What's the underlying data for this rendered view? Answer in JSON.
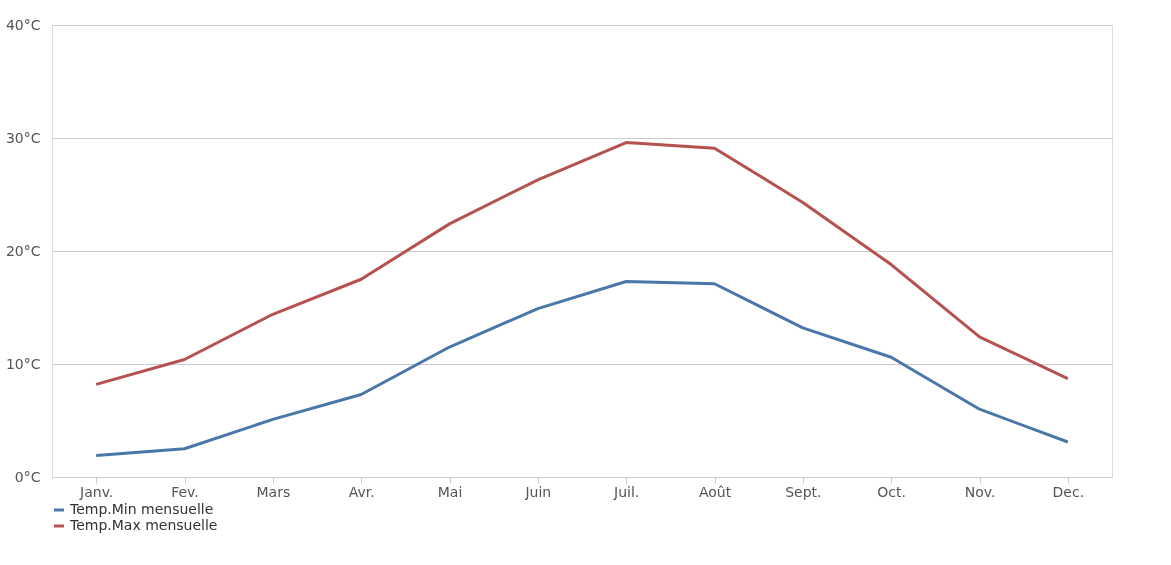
{
  "chart_data": {
    "type": "line",
    "categories": [
      "Janv.",
      "Fev.",
      "Mars",
      "Avr.",
      "Mai",
      "Juin",
      "Juil.",
      "Août",
      "Sept.",
      "Oct.",
      "Nov.",
      "Dec."
    ],
    "series": [
      {
        "name": "Temp.Min mensuelle",
        "color": "#4a77a8",
        "values": [
          1.9,
          2.5,
          5.1,
          7.3,
          11.5,
          14.9,
          17.3,
          17.1,
          13.2,
          10.6,
          6.0,
          3.1
        ]
      },
      {
        "name": "Temp.Max mensuelle",
        "color": "#b5524f",
        "values": [
          8.2,
          10.4,
          14.4,
          17.5,
          22.4,
          26.3,
          29.6,
          29.1,
          24.3,
          18.8,
          12.4,
          8.7
        ]
      }
    ],
    "ylim": [
      0,
      40
    ],
    "yticks": [
      {
        "value": 0,
        "label": "0°C"
      },
      {
        "value": 10,
        "label": "10°C"
      },
      {
        "value": 20,
        "label": "20°C"
      },
      {
        "value": 30,
        "label": "30°C"
      },
      {
        "value": 40,
        "label": "40°C"
      }
    ],
    "grid": "y",
    "legend": "bottom left",
    "marker": "none",
    "line_style": "solid"
  }
}
